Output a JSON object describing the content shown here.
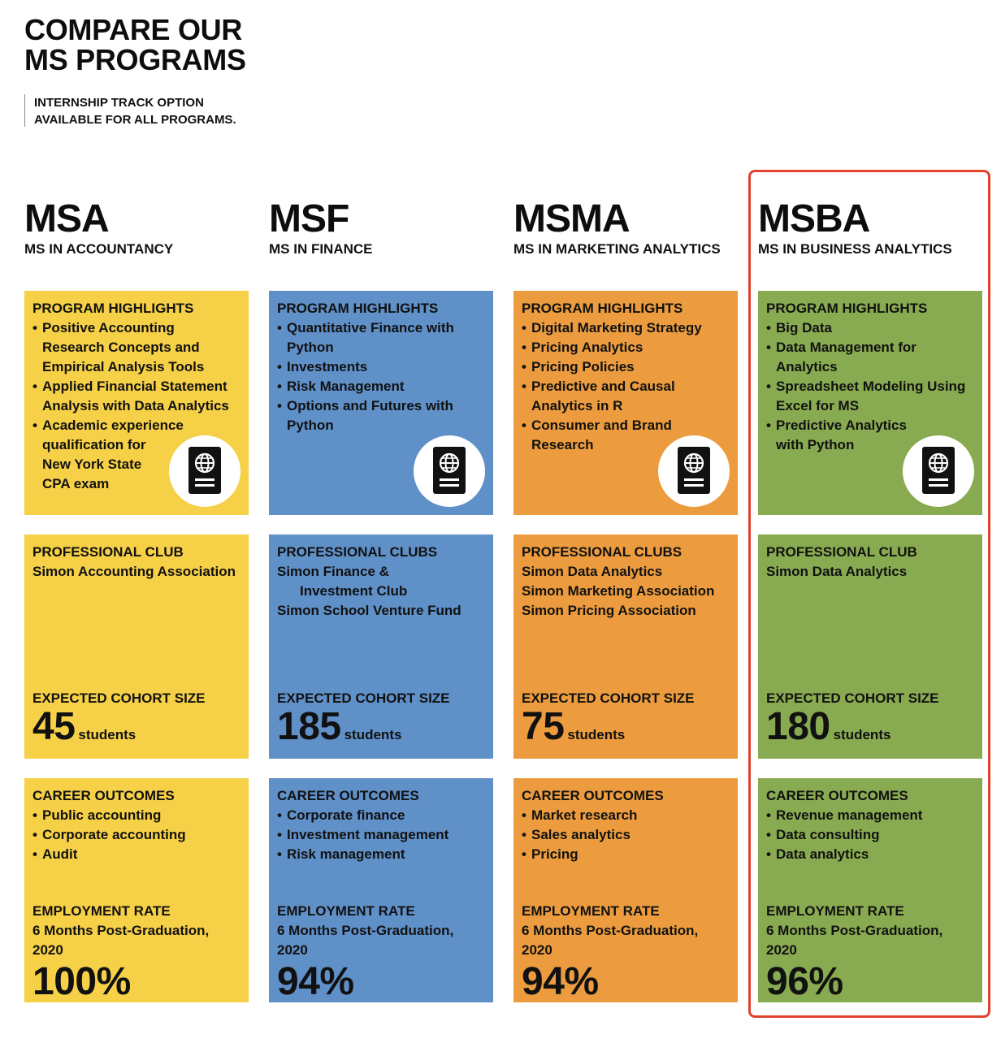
{
  "header": {
    "title_line1": "COMPARE OUR",
    "title_line2": "MS PROGRAMS",
    "note_line1": "INTERNSHIP TRACK OPTION",
    "note_line2": "AVAILABLE FOR ALL PROGRAMS."
  },
  "colors": {
    "msa": "#f6d046",
    "msf": "#5f90c8",
    "msma": "#ec9c3e",
    "msba": "#88aa50",
    "highlight_frame": "#e0422e"
  },
  "icons": {
    "passport": "passport-icon"
  },
  "programs": [
    {
      "abbr": "MSA",
      "name": "MS IN ACCOUNTANCY",
      "highlights_head": "PROGRAM HIGHLIGHTS",
      "highlights": [
        [
          "Positive Accounting",
          "Research Concepts and",
          "Empirical Analysis Tools"
        ],
        [
          "Applied Financial Statement",
          "Analysis with Data Analytics"
        ],
        [
          "Academic experience",
          "qualification for",
          "New York State",
          "CPA exam"
        ]
      ],
      "clubs_head": "PROFESSIONAL CLUB",
      "clubs": [
        "Simon Accounting Association"
      ],
      "cohort_head": "EXPECTED COHORT SIZE",
      "cohort_num": "45",
      "cohort_unit": "students",
      "outcomes_head": "CAREER OUTCOMES",
      "outcomes": [
        "Public accounting",
        "Corporate accounting",
        "Audit"
      ],
      "emp_head": "EMPLOYMENT RATE",
      "emp_sub1": "6 Months Post-Graduation,",
      "emp_sub2": "2020",
      "emp_rate": "100%"
    },
    {
      "abbr": "MSF",
      "name": "MS IN FINANCE",
      "highlights_head": "PROGRAM HIGHLIGHTS",
      "highlights": [
        [
          "Quantitative Finance with",
          "Python"
        ],
        [
          "Investments"
        ],
        [
          "Risk Management"
        ],
        [
          "Options and Futures with",
          "Python"
        ]
      ],
      "clubs_head": "PROFESSIONAL CLUBS",
      "clubs": [
        "Simon Finance &",
        "Investment Club",
        "Simon School Venture Fund"
      ],
      "cohort_head": "EXPECTED COHORT SIZE",
      "cohort_num": "185",
      "cohort_unit": "students",
      "outcomes_head": "CAREER OUTCOMES",
      "outcomes": [
        "Corporate finance",
        "Investment management",
        "Risk management"
      ],
      "emp_head": "EMPLOYMENT RATE",
      "emp_sub1": "6 Months Post-Graduation,",
      "emp_sub2": "2020",
      "emp_rate": "94%"
    },
    {
      "abbr": "MSMA",
      "name": "MS IN MARKETING ANALYTICS",
      "highlights_head": "PROGRAM HIGHLIGHTS",
      "highlights": [
        [
          "Digital Marketing Strategy"
        ],
        [
          "Pricing Analytics"
        ],
        [
          "Pricing Policies"
        ],
        [
          "Predictive and Causal",
          "Analytics in R"
        ],
        [
          "Consumer and Brand",
          "Research"
        ]
      ],
      "clubs_head": "PROFESSIONAL CLUBS",
      "clubs": [
        "Simon Data Analytics",
        "Simon Marketing Association",
        "Simon Pricing Association"
      ],
      "cohort_head": "EXPECTED COHORT SIZE",
      "cohort_num": "75",
      "cohort_unit": "students",
      "outcomes_head": "CAREER OUTCOMES",
      "outcomes": [
        "Market research",
        "Sales analytics",
        "Pricing"
      ],
      "emp_head": "EMPLOYMENT RATE",
      "emp_sub1": "6 Months Post-Graduation,",
      "emp_sub2": "2020",
      "emp_rate": "94%"
    },
    {
      "abbr": "MSBA",
      "name": "MS IN BUSINESS ANALYTICS",
      "highlights_head": "PROGRAM HIGHLIGHTS",
      "highlights": [
        [
          "Big Data"
        ],
        [
          "Data Management for",
          "Analytics"
        ],
        [
          "Spreadsheet Modeling Using",
          "Excel for MS"
        ],
        [
          "Predictive Analytics",
          "with Python"
        ]
      ],
      "clubs_head": "PROFESSIONAL CLUB",
      "clubs": [
        "Simon Data Analytics"
      ],
      "cohort_head": "EXPECTED COHORT SIZE",
      "cohort_num": "180",
      "cohort_unit": "students",
      "outcomes_head": "CAREER OUTCOMES",
      "outcomes": [
        "Revenue management",
        "Data consulting",
        "Data analytics"
      ],
      "emp_head": "EMPLOYMENT RATE",
      "emp_sub1": "6 Months Post-Graduation,",
      "emp_sub2": "2020",
      "emp_rate": "96%"
    }
  ]
}
